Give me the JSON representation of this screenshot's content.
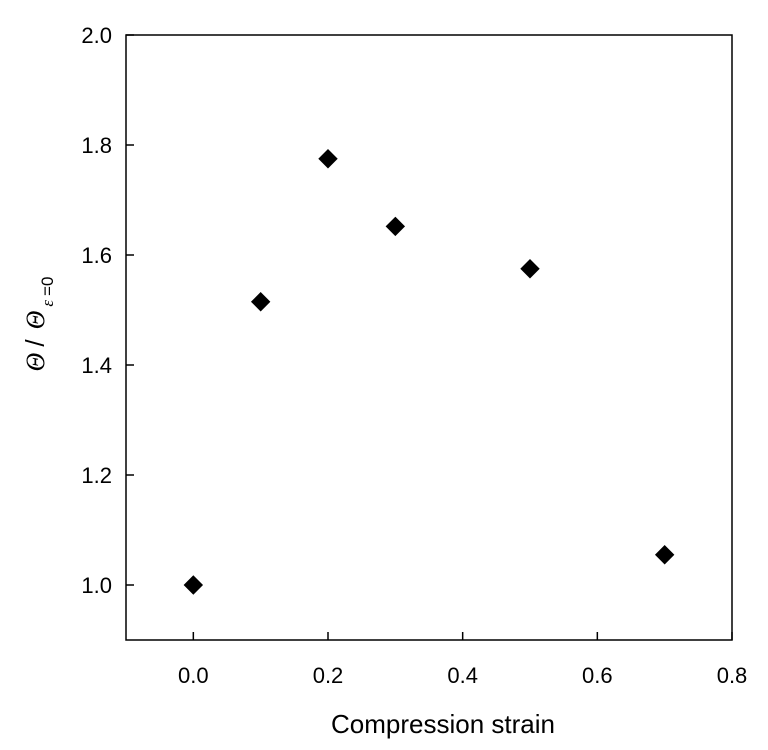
{
  "chart_data": {
    "type": "scatter",
    "xlabel": "Compression strain",
    "ylabel": {
      "numerator": "Θ",
      "slash": "/",
      "denominator": "Θ",
      "subscript_symbol": "ε",
      "subscript_rest": "=0"
    },
    "xlim": [
      -0.1,
      0.8
    ],
    "ylim": [
      0.9,
      2.0
    ],
    "xticks": [
      0.0,
      0.2,
      0.4,
      0.6,
      0.8
    ],
    "xtick_labels": [
      "0.0",
      "0.2",
      "0.4",
      "0.6",
      "0.8"
    ],
    "yticks": [
      1.0,
      1.2,
      1.4,
      1.6,
      1.8,
      2.0
    ],
    "ytick_labels": [
      "1.0",
      "1.2",
      "1.4",
      "1.6",
      "1.8",
      "2.0"
    ],
    "grid": false,
    "marker": "diamond",
    "marker_color": "#000000",
    "points": [
      {
        "x": 0.0,
        "y": 1.0
      },
      {
        "x": 0.1,
        "y": 1.515
      },
      {
        "x": 0.2,
        "y": 1.775
      },
      {
        "x": 0.3,
        "y": 1.652
      },
      {
        "x": 0.5,
        "y": 1.575
      },
      {
        "x": 0.7,
        "y": 1.055
      }
    ]
  }
}
